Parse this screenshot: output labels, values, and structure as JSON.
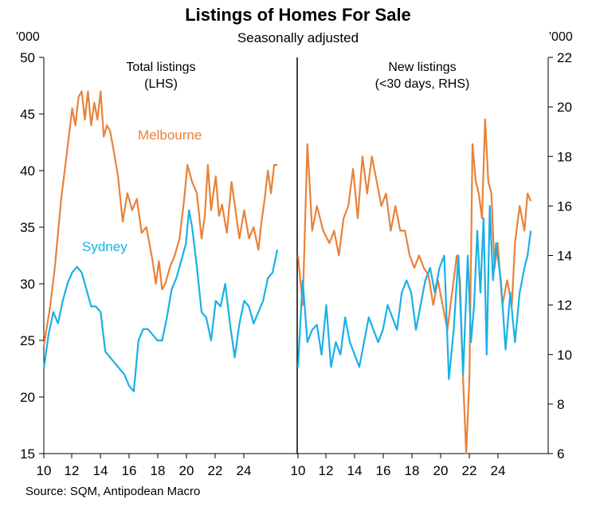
{
  "header": {
    "title": "Listings of Homes For Sale",
    "subtitle": "Seasonally adjusted",
    "unit_left": "'000",
    "unit_right": "'000"
  },
  "footer": {
    "source": "Source: SQM, Antipodean Macro"
  },
  "panels": {
    "left_label": "Total listings\n(LHS)",
    "right_label": "New listings\n(<30 days, RHS)"
  },
  "series_labels": {
    "melbourne": "Melbourne",
    "sydney": "Sydney"
  },
  "colors": {
    "melbourne": "#e8823a",
    "sydney": "#1ab0e6",
    "axis": "#000000",
    "divider": "#000000"
  },
  "chart_data": [
    {
      "type": "line",
      "panel": "Total listings (LHS)",
      "xlabel": "",
      "ylabel": "'000",
      "xlim": [
        2009.9,
        2024.9
      ],
      "ylim": [
        15,
        50
      ],
      "yticks": [
        15,
        20,
        25,
        30,
        35,
        40,
        45,
        50
      ],
      "xticks": [
        "10",
        "12",
        "14",
        "16",
        "18",
        "20",
        "22",
        "24"
      ],
      "grid": false,
      "series": [
        {
          "name": "Melbourne",
          "color": "#e8823a",
          "x": [
            2009.9,
            2010.3,
            2010.6,
            2011.0,
            2011.4,
            2011.7,
            2011.9,
            2012.1,
            2012.3,
            2012.5,
            2012.7,
            2012.9,
            2013.1,
            2013.3,
            2013.5,
            2013.7,
            2013.9,
            2014.1,
            2014.3,
            2014.6,
            2014.9,
            2015.2,
            2015.5,
            2015.8,
            2016.1,
            2016.4,
            2016.8,
            2017.0,
            2017.2,
            2017.4,
            2017.6,
            2017.9,
            2018.2,
            2018.5,
            2018.8,
            2019.0,
            2019.3,
            2019.6,
            2019.9,
            2020.1,
            2020.3,
            2020.5,
            2020.8,
            2021.0,
            2021.2,
            2021.5,
            2021.8,
            2022.0,
            2022.3,
            2022.6,
            2022.9,
            2023.2,
            2023.5,
            2023.7,
            2023.9,
            2024.1,
            2024.3,
            2024.5,
            2024.7
          ],
          "values": [
            24.5,
            28,
            31.5,
            37.5,
            42,
            45.5,
            44,
            46.5,
            47,
            44.5,
            47,
            44,
            46,
            44.5,
            47,
            43,
            44,
            43.5,
            42,
            39.5,
            35.5,
            38,
            36.5,
            37.5,
            34.5,
            35,
            32,
            30,
            32,
            29.5,
            30,
            31.5,
            32.5,
            34,
            37.5,
            40.5,
            39,
            38,
            34,
            36,
            40.5,
            36.5,
            39.5,
            36,
            37,
            34.5,
            39,
            37,
            34,
            36.5,
            34,
            35,
            33,
            35.5,
            37.5,
            40,
            38,
            40.5,
            40.5
          ]
        },
        {
          "name": "Sydney",
          "color": "#1ab0e6",
          "x": [
            2009.9,
            2010.2,
            2010.5,
            2010.8,
            2011.1,
            2011.4,
            2011.7,
            2012.0,
            2012.3,
            2012.6,
            2012.9,
            2013.2,
            2013.5,
            2013.8,
            2014.1,
            2014.4,
            2014.7,
            2015.0,
            2015.3,
            2015.6,
            2015.9,
            2016.2,
            2016.5,
            2016.8,
            2017.1,
            2017.4,
            2017.7,
            2018.0,
            2018.3,
            2018.6,
            2018.9,
            2019.1,
            2019.3,
            2019.6,
            2019.9,
            2020.2,
            2020.5,
            2020.8,
            2021.1,
            2021.4,
            2021.7,
            2022.0,
            2022.3,
            2022.6,
            2022.9,
            2023.2,
            2023.5,
            2023.8,
            2024.1,
            2024.4,
            2024.7
          ],
          "values": [
            22.5,
            25.5,
            27.5,
            26.5,
            28.5,
            30,
            31,
            31.5,
            31,
            29.5,
            28,
            28,
            27.5,
            24,
            23.5,
            23,
            22.5,
            22,
            21,
            20.5,
            25,
            26,
            26,
            25.5,
            25,
            25,
            27,
            29.5,
            30.5,
            32,
            33.5,
            36.5,
            35,
            31.5,
            27.5,
            27,
            25,
            28.5,
            28,
            30,
            26.5,
            23.5,
            26.5,
            28.5,
            28,
            26.5,
            27.5,
            28.5,
            30.5,
            31,
            33
          ]
        }
      ]
    },
    {
      "type": "line",
      "panel": "New listings (<30 days, RHS)",
      "xlabel": "",
      "ylabel": "'000",
      "xlim": [
        2009.9,
        2024.9
      ],
      "ylim": [
        6,
        22
      ],
      "yticks": [
        6,
        8,
        10,
        12,
        14,
        16,
        18,
        20,
        22
      ],
      "xticks": [
        "10",
        "12",
        "14",
        "16",
        "18",
        "20",
        "22",
        "24"
      ],
      "grid": false,
      "series": [
        {
          "name": "Melbourne",
          "color": "#e8823a",
          "x": [
            2009.9,
            2010.2,
            2010.5,
            2010.8,
            2011.1,
            2011.5,
            2011.9,
            2012.2,
            2012.5,
            2012.8,
            2013.1,
            2013.4,
            2013.7,
            2014.0,
            2014.3,
            2014.6,
            2014.9,
            2015.2,
            2015.5,
            2015.8,
            2016.1,
            2016.4,
            2016.7,
            2017.0,
            2017.3,
            2017.6,
            2017.9,
            2018.2,
            2018.5,
            2018.8,
            2019.1,
            2019.4,
            2019.7,
            2020.0,
            2020.2,
            2020.4,
            2020.6,
            2020.8,
            2021.0,
            2021.2,
            2021.4,
            2021.6,
            2021.8,
            2022.0,
            2022.2,
            2022.4,
            2022.6,
            2022.9,
            2023.2,
            2023.5,
            2023.7,
            2024.0,
            2024.3,
            2024.5,
            2024.7
          ],
          "values": [
            14,
            12,
            18.5,
            15,
            16,
            15,
            14.5,
            15,
            14,
            15.5,
            16,
            17.5,
            15.5,
            18,
            16.5,
            18,
            17,
            16,
            16.5,
            15,
            16,
            15,
            15,
            14,
            13.5,
            14,
            13.5,
            13.2,
            12,
            13,
            12,
            11,
            12.5,
            14,
            13,
            9,
            6,
            9,
            18.5,
            17,
            16.5,
            15.5,
            19.5,
            17,
            16.5,
            13.5,
            14.5,
            12,
            13,
            12,
            14.5,
            16,
            15,
            16.5,
            16.2
          ]
        },
        {
          "name": "Sydney",
          "color": "#1ab0e6",
          "x": [
            2009.9,
            2010.2,
            2010.5,
            2010.8,
            2011.1,
            2011.4,
            2011.7,
            2012.0,
            2012.3,
            2012.6,
            2012.9,
            2013.2,
            2013.5,
            2013.8,
            2014.1,
            2014.4,
            2014.7,
            2015.0,
            2015.3,
            2015.6,
            2015.9,
            2016.2,
            2016.5,
            2016.8,
            2017.1,
            2017.4,
            2017.7,
            2018.0,
            2018.3,
            2018.6,
            2018.9,
            2019.2,
            2019.5,
            2019.8,
            2020.1,
            2020.4,
            2020.7,
            2020.9,
            2021.1,
            2021.3,
            2021.5,
            2021.7,
            2021.9,
            2022.1,
            2022.3,
            2022.5,
            2022.8,
            2023.1,
            2023.4,
            2023.7,
            2024.0,
            2024.3,
            2024.5,
            2024.7
          ],
          "values": [
            9.5,
            13,
            10.5,
            11,
            11.2,
            10,
            12,
            9.5,
            10.5,
            10,
            11.5,
            10.5,
            10,
            9.5,
            10.5,
            11.5,
            11,
            10.5,
            11,
            12,
            11.5,
            11,
            12.5,
            13,
            12.5,
            11,
            12,
            13,
            13.5,
            12.5,
            13.5,
            14,
            9,
            11,
            14,
            9.2,
            14,
            10.5,
            12,
            15,
            12.5,
            15.5,
            10,
            16,
            13,
            14.5,
            13,
            10.2,
            12.5,
            10.5,
            12.5,
            13.5,
            14,
            15
          ]
        }
      ]
    }
  ]
}
